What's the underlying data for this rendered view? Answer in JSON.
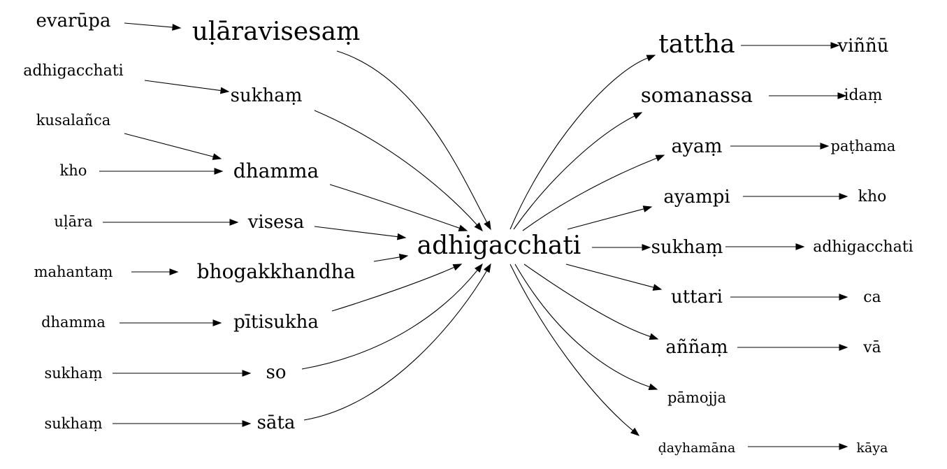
{
  "graph": {
    "direction": "left-to-right",
    "center": {
      "id": "adhigacchati_c",
      "label": "adhigacchati"
    },
    "nodes": [
      {
        "id": "adhigacchati_c",
        "label": "adhigacchati"
      },
      {
        "id": "evarupa",
        "label": "evarūpa"
      },
      {
        "id": "ularavisesam",
        "label": "uḷāravisesaṃ"
      },
      {
        "id": "adhigacchati_l",
        "label": "adhigacchati"
      },
      {
        "id": "sukham_l",
        "label": "sukhaṃ"
      },
      {
        "id": "kusalanca",
        "label": "kusalañca"
      },
      {
        "id": "kho_l",
        "label": "kho"
      },
      {
        "id": "dhamma_l",
        "label": "dhamma"
      },
      {
        "id": "ulara",
        "label": "uḷāra"
      },
      {
        "id": "visesa",
        "label": "visesa"
      },
      {
        "id": "mahantam",
        "label": "mahantaṃ"
      },
      {
        "id": "bhogakkhandha",
        "label": "bhogakkhandha"
      },
      {
        "id": "dhamma_src",
        "label": "dhamma"
      },
      {
        "id": "pitisukha",
        "label": "pītisukha"
      },
      {
        "id": "sukham_src1",
        "label": "sukhaṃ"
      },
      {
        "id": "so",
        "label": "so"
      },
      {
        "id": "sukham_src2",
        "label": "sukhaṃ"
      },
      {
        "id": "sata",
        "label": "sāta"
      },
      {
        "id": "tattha",
        "label": "tattha"
      },
      {
        "id": "vinnu",
        "label": "viññū"
      },
      {
        "id": "somanassa",
        "label": "somanassa"
      },
      {
        "id": "idam",
        "label": "idaṃ"
      },
      {
        "id": "ayam",
        "label": "ayaṃ"
      },
      {
        "id": "pathama",
        "label": "paṭhama"
      },
      {
        "id": "ayampi",
        "label": "ayampi"
      },
      {
        "id": "kho_r",
        "label": "kho"
      },
      {
        "id": "sukham_r",
        "label": "sukhaṃ"
      },
      {
        "id": "adhigacchati_r",
        "label": "adhigacchati"
      },
      {
        "id": "uttari",
        "label": "uttari"
      },
      {
        "id": "ca",
        "label": "ca"
      },
      {
        "id": "annam",
        "label": "aññaṃ"
      },
      {
        "id": "va",
        "label": "vā"
      },
      {
        "id": "pamojja",
        "label": "pāmojja"
      },
      {
        "id": "dayhamana",
        "label": "ḍayhamāna"
      },
      {
        "id": "kaya",
        "label": "kāya"
      }
    ],
    "edges": [
      {
        "from": "evarupa",
        "to": "ularavisesam"
      },
      {
        "from": "adhigacchati_l",
        "to": "sukham_l"
      },
      {
        "from": "kusalanca",
        "to": "dhamma_l"
      },
      {
        "from": "kho_l",
        "to": "dhamma_l"
      },
      {
        "from": "ulara",
        "to": "visesa"
      },
      {
        "from": "mahantam",
        "to": "bhogakkhandha"
      },
      {
        "from": "dhamma_src",
        "to": "pitisukha"
      },
      {
        "from": "sukham_src1",
        "to": "so"
      },
      {
        "from": "sukham_src2",
        "to": "sata"
      },
      {
        "from": "ularavisesam",
        "to": "adhigacchati_c"
      },
      {
        "from": "sukham_l",
        "to": "adhigacchati_c"
      },
      {
        "from": "dhamma_l",
        "to": "adhigacchati_c"
      },
      {
        "from": "visesa",
        "to": "adhigacchati_c"
      },
      {
        "from": "bhogakkhandha",
        "to": "adhigacchati_c"
      },
      {
        "from": "pitisukha",
        "to": "adhigacchati_c"
      },
      {
        "from": "so",
        "to": "adhigacchati_c"
      },
      {
        "from": "sata",
        "to": "adhigacchati_c"
      },
      {
        "from": "adhigacchati_c",
        "to": "tattha"
      },
      {
        "from": "adhigacchati_c",
        "to": "somanassa"
      },
      {
        "from": "adhigacchati_c",
        "to": "ayam"
      },
      {
        "from": "adhigacchati_c",
        "to": "ayampi"
      },
      {
        "from": "adhigacchati_c",
        "to": "sukham_r"
      },
      {
        "from": "adhigacchati_c",
        "to": "uttari"
      },
      {
        "from": "adhigacchati_c",
        "to": "annam"
      },
      {
        "from": "adhigacchati_c",
        "to": "pamojja"
      },
      {
        "from": "adhigacchati_c",
        "to": "dayhamana"
      },
      {
        "from": "tattha",
        "to": "vinnu"
      },
      {
        "from": "somanassa",
        "to": "idam"
      },
      {
        "from": "ayam",
        "to": "pathama"
      },
      {
        "from": "ayampi",
        "to": "kho_r"
      },
      {
        "from": "sukham_r",
        "to": "adhigacchati_r"
      },
      {
        "from": "uttari",
        "to": "ca"
      },
      {
        "from": "annam",
        "to": "va"
      },
      {
        "from": "dayhamana",
        "to": "kaya"
      }
    ]
  }
}
